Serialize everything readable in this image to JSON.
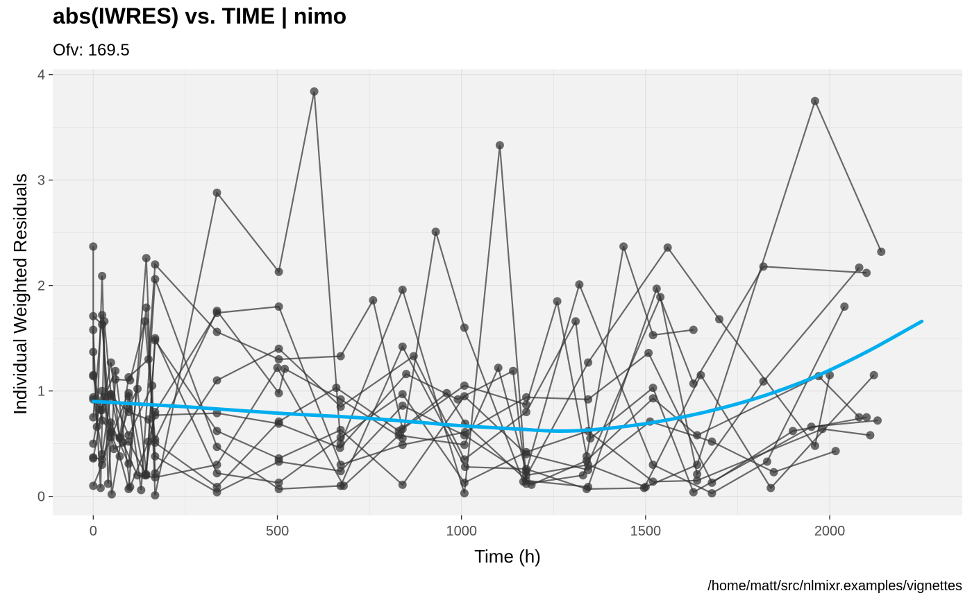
{
  "chart_data": {
    "type": "line",
    "title": "abs(IWRES) vs. TIME  | nimo",
    "subtitle": "Ofv: 169.5",
    "caption": "/home/matt/src/nlmixr.examples/vignettes",
    "xlabel": "Time (h)",
    "ylabel": "Individual Weighted Residuals",
    "xlim": [
      -110,
      2360
    ],
    "ylim": [
      -0.18,
      4.05
    ],
    "xticks": [
      0,
      500,
      1000,
      1500,
      2000
    ],
    "yticks": [
      0,
      1,
      2,
      3,
      4
    ],
    "grid": true,
    "colors": {
      "panel": "#f2f2f2",
      "grid": "#e2e2e2",
      "points": "#333333",
      "trend": "#00aeef"
    },
    "subjects": [
      {
        "x": [
          0,
          0,
          24,
          48,
          72,
          96,
          120,
          144,
          168,
          336,
          504,
          672,
          840,
          1008,
          1176,
          1344,
          1512,
          1680,
          1848,
          2016
        ],
        "y": [
          2.37,
          1.15,
          0.82,
          1.27,
          0.55,
          0.84,
          1.02,
          0.21,
          1.48,
          0.62,
          0.36,
          0.63,
          0.11,
          0.95,
          0.4,
          0.25,
          0.71,
          0.52,
          0.23,
          0.43
        ]
      },
      {
        "x": [
          0,
          24,
          48,
          72,
          96,
          144,
          168,
          336,
          504,
          600,
          672,
          840,
          1008,
          1104,
          1176,
          1344,
          1530,
          1630,
          1820,
          2100
        ],
        "y": [
          1.71,
          1.63,
          0.6,
          0.38,
          0.07,
          2.26,
          0.01,
          2.88,
          2.13,
          3.84,
          0.5,
          1.96,
          0.03,
          3.33,
          0.15,
          0.09,
          1.97,
          1.07,
          2.18,
          2.12
        ]
      },
      {
        "x": [
          0,
          20,
          30,
          48,
          72,
          96,
          150,
          168,
          336,
          504,
          672,
          760,
          840,
          1008,
          1176,
          1260,
          1340,
          1440,
          1520,
          1630
        ],
        "y": [
          1.37,
          0.08,
          1.66,
          0.97,
          0.56,
          1.13,
          1.3,
          2.2,
          1.56,
          1.3,
          1.33,
          1.86,
          0.64,
          1.05,
          0.87,
          1.85,
          0.38,
          2.37,
          1.53,
          1.58
        ]
      },
      {
        "x": [
          0,
          10,
          24,
          40,
          60,
          100,
          140,
          168,
          336,
          504,
          520,
          672,
          840,
          930,
          1008,
          1168,
          1344,
          1560,
          1700,
          1960,
          2000
        ],
        "y": [
          1.58,
          0.66,
          2.09,
          0.12,
          1.11,
          1.1,
          1.66,
          0.54,
          1.76,
          0.98,
          1.21,
          0.92,
          0.55,
          2.51,
          1.6,
          0.14,
          1.27,
          2.36,
          1.68,
          0.48,
          1.15
        ]
      },
      {
        "x": [
          0,
          24,
          50,
          96,
          130,
          168,
          336,
          504,
          672,
          840,
          1010,
          1176,
          1340,
          1496,
          1650,
          1840,
          2120
        ],
        "y": [
          0.75,
          1.72,
          0.02,
          0.95,
          0.06,
          2.06,
          0.47,
          0.07,
          0.1,
          1.42,
          0.28,
          0.26,
          0.07,
          0.08,
          1.15,
          0.08,
          1.15
        ]
      },
      {
        "x": [
          0,
          24,
          48,
          96,
          140,
          168,
          336,
          504,
          672,
          840,
          1010,
          1176,
          1344,
          1508,
          1680,
          1900,
          2100
        ],
        "y": [
          0.37,
          0.35,
          0.56,
          0.98,
          0.2,
          0.8,
          1.74,
          1.8,
          0.3,
          0.49,
          0.61,
          0.94,
          0.92,
          1.36,
          0.13,
          0.62,
          0.75
        ]
      },
      {
        "x": [
          0,
          24,
          48,
          96,
          144,
          168,
          336,
          504,
          672,
          840,
          1008,
          1176,
          1344,
          1500,
          1640,
          1960,
          2140
        ],
        "y": [
          0.1,
          0.3,
          0.7,
          0.31,
          1.79,
          0.38,
          0.04,
          0.33,
          0.24,
          0.86,
          0.58,
          0.2,
          0.3,
          0.09,
          0.3,
          3.75,
          2.32
        ]
      },
      {
        "x": [
          0,
          24,
          56,
          96,
          144,
          168,
          336,
          504,
          672,
          840,
          1008,
          1176,
          1344,
          1520,
          1640,
          1980,
          2110
        ],
        "y": [
          0.5,
          1.0,
          0.45,
          0.52,
          0.2,
          1.5,
          0.22,
          0.13,
          0.56,
          0.97,
          0.13,
          0.42,
          0.62,
          0.14,
          0.15,
          0.64,
          0.58
        ]
      },
      {
        "x": [
          0,
          24,
          48,
          96,
          160,
          168,
          336,
          504,
          672,
          870,
          1008,
          1176,
          1310,
          1350,
          1520,
          1630,
          1950,
          2130
        ],
        "y": [
          0.94,
          0.4,
          0.97,
          0.58,
          1.05,
          0.22,
          1.1,
          1.4,
          0.85,
          1.33,
          0.35,
          0.8,
          1.66,
          0.55,
          1.03,
          0.04,
          0.66,
          0.72
        ]
      },
      {
        "x": [
          0,
          24,
          48,
          80,
          120,
          168,
          336,
          500,
          680,
          830,
          1008,
          1100,
          1176,
          1320,
          1520,
          1680,
          1830,
          2040
        ],
        "y": [
          1.14,
          0.72,
          0.62,
          0.51,
          0.2,
          0.18,
          0.3,
          1.22,
          0.1,
          0.58,
          0.49,
          1.22,
          0.24,
          2.01,
          0.3,
          0.03,
          0.33,
          1.8
        ]
      },
      {
        "x": [
          0,
          30,
          60,
          100,
          150,
          168,
          336,
          504,
          670,
          850,
          990,
          1140,
          1176,
          1330,
          1540,
          1640,
          1820,
          2080
        ],
        "y": [
          0.36,
          0.94,
          1.19,
          0.09,
          0.52,
          0.77,
          0.79,
          0.69,
          0.46,
          1.16,
          0.92,
          1.19,
          0.12,
          0.2,
          1.89,
          0.21,
          1.09,
          2.17
        ]
      },
      {
        "x": [
          0,
          20,
          48,
          96,
          150,
          168,
          336,
          504,
          660,
          830,
          960,
          1010,
          1190,
          1340,
          1520,
          1640,
          1970,
          2080
        ],
        "y": [
          0.92,
          0.82,
          0.95,
          0.8,
          0.73,
          0.51,
          0.09,
          0.71,
          1.03,
          0.62,
          0.98,
          0.69,
          0.11,
          0.34,
          0.93,
          0.58,
          1.14,
          0.75
        ]
      }
    ],
    "trend": {
      "x": [
        0,
        250,
        500,
        750,
        1000,
        1150,
        1250,
        1350,
        1500,
        1650,
        1800,
        1950,
        2100,
        2250
      ],
      "y": [
        0.9,
        0.85,
        0.79,
        0.74,
        0.67,
        0.64,
        0.62,
        0.63,
        0.69,
        0.79,
        0.93,
        1.12,
        1.37,
        1.66
      ]
    }
  }
}
